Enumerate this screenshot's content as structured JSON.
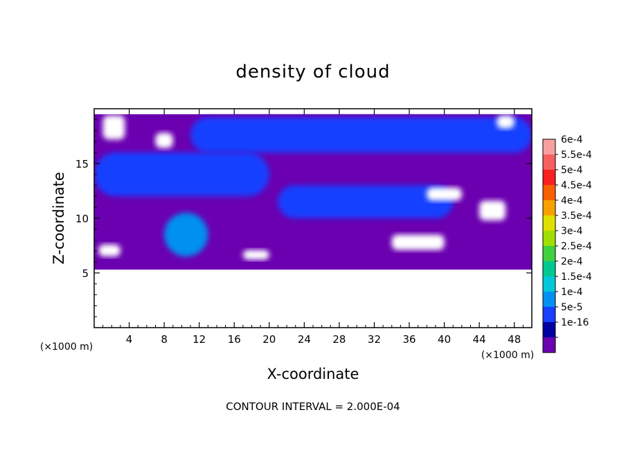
{
  "chart_data": {
    "type": "heatmap",
    "title": "density of cloud",
    "xlabel": "X-coordinate",
    "ylabel": "Z-coordinate",
    "x_unit_label": "(×1000 m)",
    "y_unit_label": "(×1000 m)",
    "xlim": [
      0,
      50
    ],
    "ylim": [
      0,
      20
    ],
    "x_ticks": [
      4,
      8,
      12,
      16,
      20,
      24,
      28,
      32,
      36,
      40,
      44,
      48
    ],
    "y_ticks": [
      5,
      10,
      15
    ],
    "x_tick_labels": [
      "4",
      "8",
      "12",
      "16",
      "20",
      "24",
      "28",
      "32",
      "36",
      "40",
      "44",
      "48"
    ],
    "y_tick_labels": [
      "5",
      "10",
      "15"
    ],
    "note": "CONTOUR INTERVAL = 2.000E-04",
    "colorbar": {
      "levels": [
        {
          "label": "6e-4",
          "color": "#f8a0a0"
        },
        {
          "label": "5.5e-4",
          "color": "#f86060"
        },
        {
          "label": "5e-4",
          "color": "#f82020"
        },
        {
          "label": "4.5e-4",
          "color": "#f86000"
        },
        {
          "label": "4e-4",
          "color": "#f8a000"
        },
        {
          "label": "3.5e-4",
          "color": "#e0e000"
        },
        {
          "label": "3e-4",
          "color": "#a0e000"
        },
        {
          "label": "2.5e-4",
          "color": "#40d040"
        },
        {
          "label": "2e-4",
          "color": "#00c890"
        },
        {
          "label": "1.5e-4",
          "color": "#00c8d8"
        },
        {
          "label": "1e-4",
          "color": "#0090f0"
        },
        {
          "label": "5e-5",
          "color": "#1840ff"
        },
        {
          "label": "1e-16",
          "color": "#0000a0"
        },
        {
          "label": "",
          "color": "#6a00b0"
        }
      ]
    },
    "field_description_regions": [
      {
        "name": "cloud-base",
        "z_range": [
          5.3,
          19.5
        ],
        "value": "1e-16",
        "color": "#6a00b0"
      },
      {
        "name": "upper-band",
        "x_range": [
          11,
          50
        ],
        "z_range": [
          16,
          19.2
        ],
        "value": "5e-5",
        "color": "#1840ff"
      },
      {
        "name": "left-band",
        "x_range": [
          0,
          20
        ],
        "z_range": [
          12,
          16
        ],
        "value": "5e-5",
        "color": "#1840ff"
      },
      {
        "name": "middle-blob",
        "x_range": [
          21,
          41
        ],
        "z_range": [
          10,
          13
        ],
        "value": "5e-5",
        "color": "#1840ff"
      },
      {
        "name": "left-tower",
        "x_range": [
          8,
          13
        ],
        "z_range": [
          6.5,
          10.5
        ],
        "value": "1e-4",
        "color": "#0090f0"
      }
    ]
  }
}
